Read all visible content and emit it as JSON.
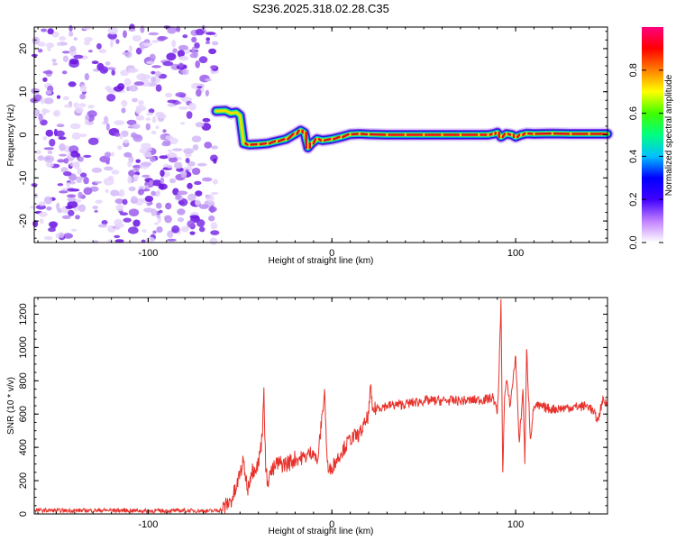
{
  "figure": {
    "title": "S236.2025.318.02.28.C35"
  },
  "chart_data": [
    {
      "type": "heatmap",
      "xlabel": "Height of straight line (km)",
      "ylabel": "Frequency (Hz)",
      "xlim": [
        -162,
        150
      ],
      "ylim": [
        -25,
        25
      ],
      "xticks": [
        -100,
        0,
        100
      ],
      "yticks": [
        -20,
        -10,
        0,
        10,
        20
      ],
      "noise_region_x": [
        -162,
        -63
      ],
      "ridge": {
        "x": [
          -63,
          -58,
          -55,
          -52,
          -50,
          -48,
          -45,
          -40,
          -35,
          -30,
          -25,
          -20,
          -17,
          -15,
          -13,
          -11,
          -8,
          -5,
          0,
          5,
          10,
          15,
          20,
          30,
          40,
          50,
          60,
          70,
          80,
          85,
          88,
          90,
          92,
          95,
          98,
          100,
          103,
          106,
          110,
          120,
          130,
          140,
          150
        ],
        "y": [
          5.5,
          5.6,
          5.0,
          5.2,
          4.5,
          -2.0,
          -2.3,
          -2.2,
          -2.0,
          -1.5,
          -1.0,
          0.2,
          1.0,
          0.5,
          -3.0,
          -2.0,
          -1.0,
          -1.3,
          -1.0,
          -0.5,
          0.1,
          0.2,
          0.1,
          0.0,
          0.0,
          0.0,
          0.0,
          0.0,
          0.0,
          0.0,
          0.2,
          0.5,
          -0.5,
          0.2,
          0.0,
          -0.5,
          0.0,
          0.3,
          0.2,
          0.3,
          0.2,
          0.2,
          0.2
        ]
      },
      "colorbar": {
        "label": "Normalized spectral amplitude",
        "range": [
          0,
          1
        ],
        "ticks": [
          "0.0",
          "0.2",
          "0.4",
          "0.6",
          "0.8"
        ],
        "colors": [
          "#ffffff",
          "#c080ff",
          "#4000ff",
          "#0000ff",
          "#00c0ff",
          "#00ff80",
          "#40ff00",
          "#ffff00",
          "#ff8000",
          "#ff0000",
          "#ff0080"
        ]
      }
    },
    {
      "type": "line",
      "xlabel": "Height of straight line (km)",
      "ylabel": "SNR (10 * v/v)",
      "xlim": [
        -162,
        150
      ],
      "ylim": [
        0,
        1300
      ],
      "xticks": [
        -100,
        0,
        100
      ],
      "yticks": [
        0,
        200,
        400,
        600,
        800,
        1000,
        1200
      ],
      "color": "#e8312a",
      "series": [
        {
          "x": [
            -162,
            -140,
            -120,
            -100,
            -80,
            -65,
            -60,
            -55,
            -52,
            -50,
            -48,
            -46,
            -44,
            -42,
            -40,
            -38,
            -37,
            -36,
            -35,
            -34,
            -32,
            -30,
            -25,
            -20,
            -15,
            -10,
            -8,
            -5,
            -4,
            -3,
            -2,
            0,
            5,
            10,
            15,
            18,
            20,
            21,
            22,
            25,
            30,
            40,
            50,
            60,
            70,
            80,
            85,
            88,
            90,
            91,
            92,
            93,
            94,
            95,
            97,
            100,
            102,
            104,
            105,
            106,
            108,
            110,
            115,
            120,
            130,
            140,
            145,
            147,
            150
          ],
          "y": [
            22,
            20,
            22,
            18,
            20,
            18,
            25,
            80,
            150,
            250,
            310,
            150,
            250,
            280,
            300,
            460,
            760,
            250,
            200,
            240,
            260,
            300,
            300,
            330,
            340,
            380,
            300,
            620,
            750,
            420,
            250,
            280,
            370,
            450,
            480,
            540,
            600,
            770,
            620,
            640,
            650,
            660,
            680,
            680,
            680,
            685,
            690,
            700,
            600,
            850,
            1290,
            250,
            700,
            800,
            650,
            950,
            430,
            750,
            300,
            990,
            450,
            650,
            640,
            630,
            640,
            650,
            560,
            680,
            660
          ]
        }
      ]
    }
  ]
}
